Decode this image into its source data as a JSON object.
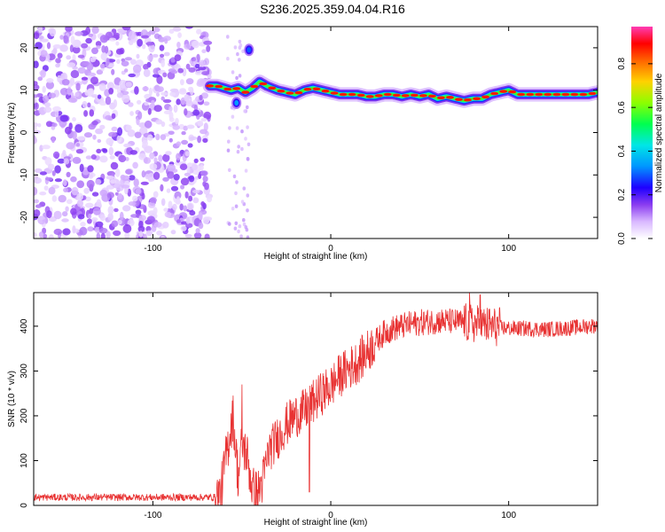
{
  "title": "S236.2025.359.04.04.R16",
  "chart_data": [
    {
      "type": "heatmap",
      "title": "S236.2025.359.04.04.R16",
      "xlabel": "Height of straight line (km)",
      "ylabel": "Frequency (Hz)",
      "xlim": [
        -167,
        150
      ],
      "ylim": [
        -25,
        25
      ],
      "xticks": [
        -100,
        0,
        100
      ],
      "yticks": [
        -20,
        -10,
        0,
        10,
        20
      ],
      "colorbar": {
        "label": "Normalized spectral amplitude",
        "range": [
          0,
          0.97
        ],
        "ticks": [
          0.0,
          0.2,
          0.4,
          0.6,
          0.8
        ],
        "colormap": [
          "#ffffff",
          "#b478ff",
          "#6a1bd6",
          "#0000ff",
          "#00c8ff",
          "#00ff6a",
          "#c8ff00",
          "#ffc800",
          "#ff0000",
          "#ff3cb4"
        ]
      },
      "noise_region_x": [
        -167,
        -68
      ],
      "dominant_frequency": {
        "x": [
          -68,
          -64,
          -60,
          -56,
          -52,
          -48,
          -44,
          -40,
          -36,
          -30,
          -25,
          -20,
          -15,
          -10,
          -5,
          0,
          5,
          10,
          15,
          20,
          25,
          30,
          35,
          40,
          45,
          50,
          55,
          60,
          65,
          70,
          75,
          80,
          85,
          90,
          95,
          100,
          105,
          110,
          115,
          120,
          125,
          130,
          135,
          140,
          145,
          150
        ],
        "y": [
          11,
          11,
          10.5,
          10,
          10.5,
          9.5,
          10.5,
          12,
          11,
          10,
          9.5,
          9,
          10,
          10.5,
          10,
          9.5,
          9,
          9,
          9,
          8.5,
          8.5,
          9,
          9,
          8.5,
          9,
          8.5,
          9,
          8,
          8.5,
          8,
          7.5,
          8,
          8,
          9,
          9.5,
          10,
          9,
          9,
          9,
          9,
          9,
          9,
          9,
          9,
          9,
          9.5
        ]
      },
      "features": [
        {
          "x": -46,
          "y": 19.5,
          "amplitude": 0.3
        },
        {
          "x": -53,
          "y": 7,
          "amplitude": 0.35
        }
      ]
    },
    {
      "type": "line",
      "xlabel": "Height of straight line (km)",
      "ylabel": "SNR (10 * v/v)",
      "xlim": [
        -167,
        150
      ],
      "ylim": [
        0,
        475
      ],
      "xticks": [
        -100,
        0,
        100
      ],
      "yticks": [
        0,
        100,
        200,
        300,
        400
      ],
      "color": "#e83232",
      "envelope": {
        "x": [
          -167,
          -140,
          -110,
          -80,
          -65,
          -62,
          -58,
          -55,
          -52,
          -50,
          -47,
          -44,
          -41,
          -38,
          -35,
          -30,
          -25,
          -20,
          -15,
          -10,
          -5,
          0,
          5,
          10,
          15,
          20,
          25,
          30,
          35,
          40,
          45,
          50,
          60,
          70,
          80,
          90,
          100,
          110,
          120,
          130,
          140,
          150
        ],
        "y": [
          18,
          18,
          18,
          18,
          18,
          25,
          130,
          200,
          60,
          140,
          110,
          35,
          25,
          60,
          120,
          150,
          180,
          200,
          210,
          230,
          250,
          265,
          290,
          305,
          320,
          340,
          365,
          385,
          395,
          400,
          405,
          408,
          412,
          410,
          405,
          400,
          395,
          395,
          393,
          395,
          398,
          402
        ]
      },
      "noise": [
        {
          "x": [
            -167,
            -65
          ],
          "amplitude": 8
        },
        {
          "x": [
            -65,
            -38
          ],
          "amplitude": 55
        },
        {
          "x": [
            -38,
            25
          ],
          "amplitude": 50
        },
        {
          "x": [
            25,
            75
          ],
          "amplitude": 30
        },
        {
          "x": [
            75,
            95
          ],
          "amplitude": 45
        },
        {
          "x": [
            95,
            150
          ],
          "amplitude": 18
        }
      ],
      "spikes": [
        {
          "x": -50,
          "y": 270
        },
        {
          "x": -12,
          "y": 30
        },
        {
          "x": 78,
          "y": 475
        },
        {
          "x": 84,
          "y": 320
        },
        {
          "x": 84,
          "y": 470
        }
      ]
    }
  ]
}
